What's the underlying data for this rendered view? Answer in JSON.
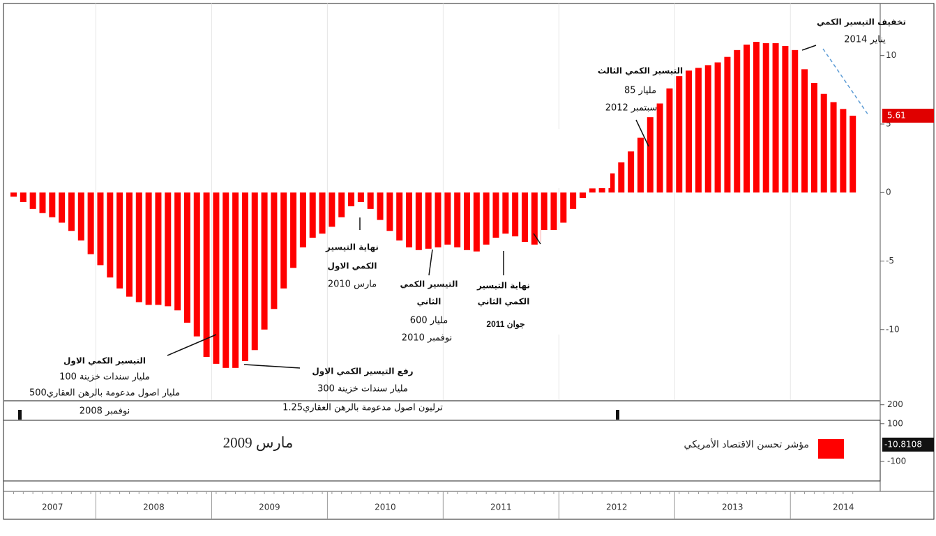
{
  "chart_data": {
    "type": "bar",
    "categories": [
      "2007",
      null,
      null,
      null,
      null,
      null,
      null,
      null,
      null,
      "2008",
      null,
      null,
      null,
      null,
      null,
      null,
      null,
      null,
      null,
      null,
      null,
      "2009",
      null,
      null,
      null,
      null,
      null,
      null,
      null,
      null,
      null,
      null,
      null,
      "2010",
      null,
      null,
      null,
      null,
      null,
      null,
      null,
      null,
      null,
      null,
      null,
      "2011",
      null,
      null,
      null,
      null,
      null,
      null,
      null,
      null,
      null,
      null,
      null,
      "2012",
      null,
      null,
      null,
      null,
      null,
      null,
      null,
      null,
      null,
      null,
      null,
      "2013",
      null,
      null,
      null,
      null,
      null,
      null,
      null,
      null,
      null,
      null,
      null,
      "2014",
      null,
      null,
      null,
      null,
      null,
      null
    ],
    "values": [
      -0.3,
      -0.7,
      -1.2,
      -1.5,
      -1.8,
      -2.2,
      -2.8,
      -3.5,
      -4.5,
      -5.3,
      -6.2,
      -7,
      -7.6,
      -8,
      -8.2,
      -8.2,
      -8.3,
      -8.6,
      -9.5,
      -10.5,
      -12,
      -12.5,
      -12.8,
      -12.8,
      -12.3,
      -11.5,
      -10,
      -8.5,
      -7,
      -5.5,
      -4,
      -3.3,
      -3,
      -2.5,
      -1.8,
      -1,
      -0.7,
      -1.2,
      -2,
      -2.8,
      -3.5,
      -4,
      -4.2,
      -4.1,
      -4,
      -3.8,
      -4,
      -4.2,
      -4.3,
      -3.8,
      -3.3,
      -3,
      -3.2,
      -3.6,
      -3.8,
      -3.6,
      -3,
      -2.2,
      -1.2,
      -0.4,
      0.3,
      0.8,
      1.4,
      2.2,
      3,
      4,
      5.5,
      6.5,
      7.6,
      8.5,
      8.9,
      9.1,
      9.3,
      9.5,
      9.9,
      10.4,
      10.8,
      11,
      10.9,
      10.9,
      10.7,
      10.4,
      9,
      8,
      7.2,
      6.6,
      6.1,
      5.61
    ],
    "color": "#ff0000",
    "ylim": [
      -15.2,
      13.8
    ],
    "yticks": [
      10,
      5,
      0,
      -5,
      -10
    ],
    "current_value": 5.61,
    "grid": true,
    "legend": {
      "name": "مؤشر تحسن الاقتصاد الأمريكي",
      "note": "مارس 2009"
    },
    "lower_panel": {
      "ylim": [
        -240,
        210
      ],
      "yticks": [
        200,
        100,
        -100
      ],
      "current_value": -10.8108
    },
    "annotations": [
      {
        "lines": [
          "تخفيف التيسير الكمي",
          "يناير 2014"
        ]
      },
      {
        "lines": [
          "التيسير الكمي الثالث",
          "85 مليار",
          "سبتمبر 2012"
        ]
      },
      {
        "lines": [
          "نهاية التيسير",
          "الكمي الاول",
          "مارس 2010"
        ]
      },
      {
        "lines": [
          "التيسير الكمي",
          "الثاني",
          "600 مليار",
          "نوفمبر 2010"
        ]
      },
      {
        "lines": [
          "نهاية التيسير",
          "الكمي الثاني",
          "جوان 2011"
        ]
      },
      {
        "lines": [
          "التيسير الكمي الاول",
          "100 مليار سندات خزينة",
          "500مليار اصول مدعومة بالرهن العقاري",
          "نوفمبر 2008"
        ]
      },
      {
        "lines": [
          "رفع التيسير الكمي الاول",
          "300 مليار سندات خزينة",
          "1.25ترليون اصول مدعومة بالرهن العقاري"
        ]
      }
    ]
  }
}
